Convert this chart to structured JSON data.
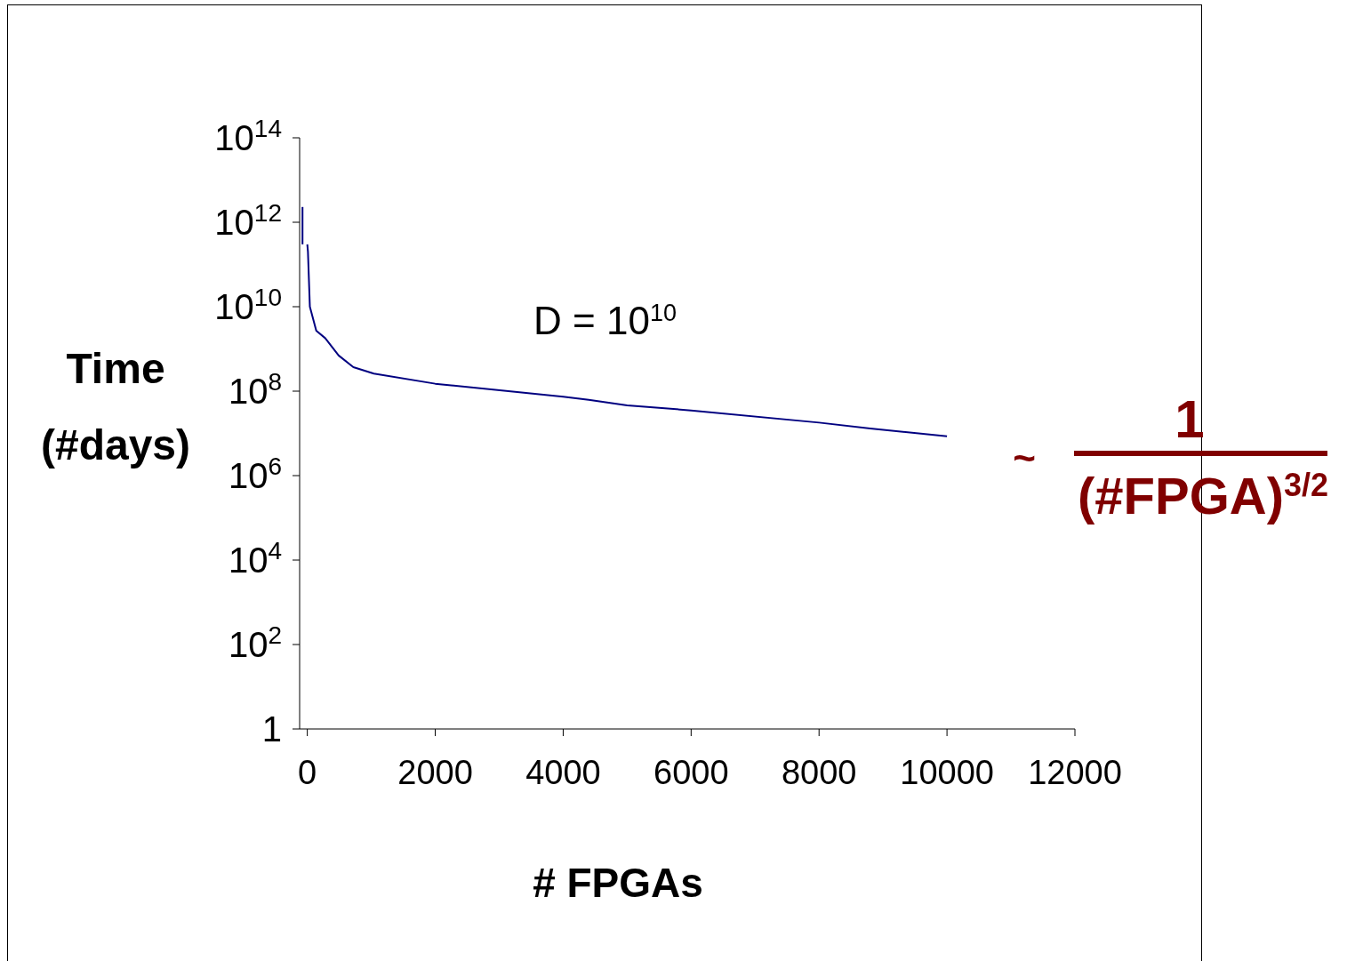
{
  "chart_data": {
    "type": "line",
    "xlabel": "# FPGAs",
    "ylabel": "Time (#days)",
    "annotations": [
      "D = 10$^{10}$",
      "~",
      "1",
      "(#FPGA)$^{3/2}$"
    ],
    "series": [
      {
        "color": "#000080",
        "x": [
          -75,
          -75
        ],
        "values": [
          2300000000000,
          300000000000
        ]
      },
      {
        "color": "#000080",
        "x": [
          0,
          10,
          40,
          140,
          280,
          490,
          720,
          1040,
          2000,
          4000,
          4400,
          5000,
          6000,
          8000,
          8800,
          10000
        ],
        "values": [
          300000000000,
          200000000000,
          10000000000,
          2700000000,
          1800000000,
          700000000,
          370000000,
          260000000,
          150000000,
          74000000,
          62000000,
          46000000,
          35000000,
          18000000,
          13000000,
          8500000
        ]
      }
    ],
    "xlim": [
      -120,
      12000
    ],
    "xticks": [
      0,
      2000,
      4000,
      6000,
      8000,
      10000,
      12000
    ],
    "ylim": [
      1,
      100000000000000
    ],
    "yticks": [
      {
        "value": 1,
        "label": "1"
      },
      {
        "value": 100,
        "label": "10$^{2}$"
      },
      {
        "value": 10000,
        "label": "10$^{4}$"
      },
      {
        "value": 1000000,
        "label": "10$^{6}$"
      },
      {
        "value": 100000000,
        "label": "10$^{8}$"
      },
      {
        "value": 10000000000,
        "label": "10$^{10}$"
      },
      {
        "value": 1000000000000,
        "label": "10$^{12}$"
      },
      {
        "value": 100000000000000,
        "label": "10$^{14}$"
      }
    ],
    "log": "y",
    "grid": false,
    "marker": "none",
    "line_style": "solid"
  }
}
